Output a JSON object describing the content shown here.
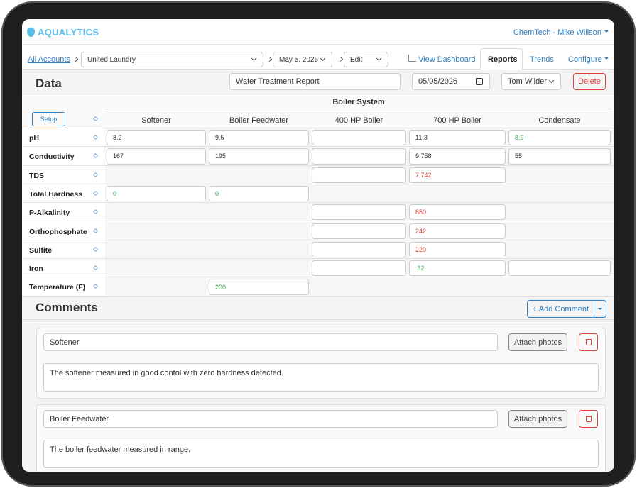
{
  "header": {
    "brand": "AQUALYTICS",
    "user": "ChemTech · Mike Willson"
  },
  "breadcrumb": {
    "accounts_link": "All Accounts",
    "account": "United Laundry",
    "date": "May 5, 2026",
    "mode": "Edit"
  },
  "tabs": {
    "items": [
      "View Dashboard",
      "Reports",
      "Trends",
      "Configure"
    ],
    "active": 1
  },
  "data_section": {
    "title": "Data",
    "report_name": "Water Treatment Report",
    "report_date": "05/05/2026",
    "technician": "Tom Wilder",
    "delete_button": "Delete"
  },
  "table": {
    "group_header": "Boiler System",
    "setup_button": "Setup",
    "columns": [
      "Softener",
      "Boiler Feedwater",
      "400 HP Boiler",
      "700 HP Boiler",
      "Condensate"
    ],
    "rows": [
      {
        "label": "pH",
        "cells": [
          {
            "value": "8.2",
            "color": "#333333"
          },
          {
            "value": "9.5",
            "color": "#333333"
          },
          null,
          {
            "value": "11.3",
            "color": "#333333"
          },
          {
            "value": "8.9",
            "color": "#3aa64a"
          }
        ]
      },
      {
        "label": "Conductivity",
        "cells": [
          {
            "value": "167",
            "color": "#333333"
          },
          {
            "value": "195",
            "color": "#333333"
          },
          null,
          {
            "value": "9,758",
            "color": "#333333"
          },
          {
            "value": "55",
            "color": "#333333"
          }
        ]
      },
      {
        "label": "TDS",
        "cells": [
          null,
          null,
          null,
          {
            "value": "7,742",
            "color": "#d9443a"
          },
          null
        ]
      },
      {
        "label": "Total Hardness",
        "cells": [
          {
            "value": "0",
            "color": "#3aa64a"
          },
          {
            "value": "0",
            "color": "#3aa64a"
          },
          null,
          null,
          null
        ]
      },
      {
        "label": "P-Alkalinity",
        "cells": [
          null,
          null,
          null,
          {
            "value": "850",
            "color": "#d9443a"
          },
          null
        ]
      },
      {
        "label": "Orthophosphate",
        "cells": [
          null,
          null,
          null,
          {
            "value": "242",
            "color": "#d9443a"
          },
          null
        ]
      },
      {
        "label": "Sulfite",
        "cells": [
          null,
          null,
          null,
          {
            "value": "220",
            "color": "#d9443a"
          },
          null
        ]
      },
      {
        "label": "Iron",
        "cells": [
          null,
          null,
          null,
          {
            "value": ".32",
            "color": "#3aa64a"
          },
          null
        ]
      },
      {
        "label": "Temperature (F)",
        "cells": [
          null,
          {
            "value": "200",
            "color": "#3aa64a"
          },
          null,
          null,
          null
        ]
      }
    ]
  },
  "comments": {
    "title": "Comments",
    "add_button": "+ Add Comment",
    "attach_button": "Attach photos",
    "items": [
      {
        "name": "Softener",
        "text": "The softener measured in good contol with zero hardness detected."
      },
      {
        "name": "Boiler Feedwater",
        "text": "The boiler feedwater measured in range."
      }
    ]
  }
}
